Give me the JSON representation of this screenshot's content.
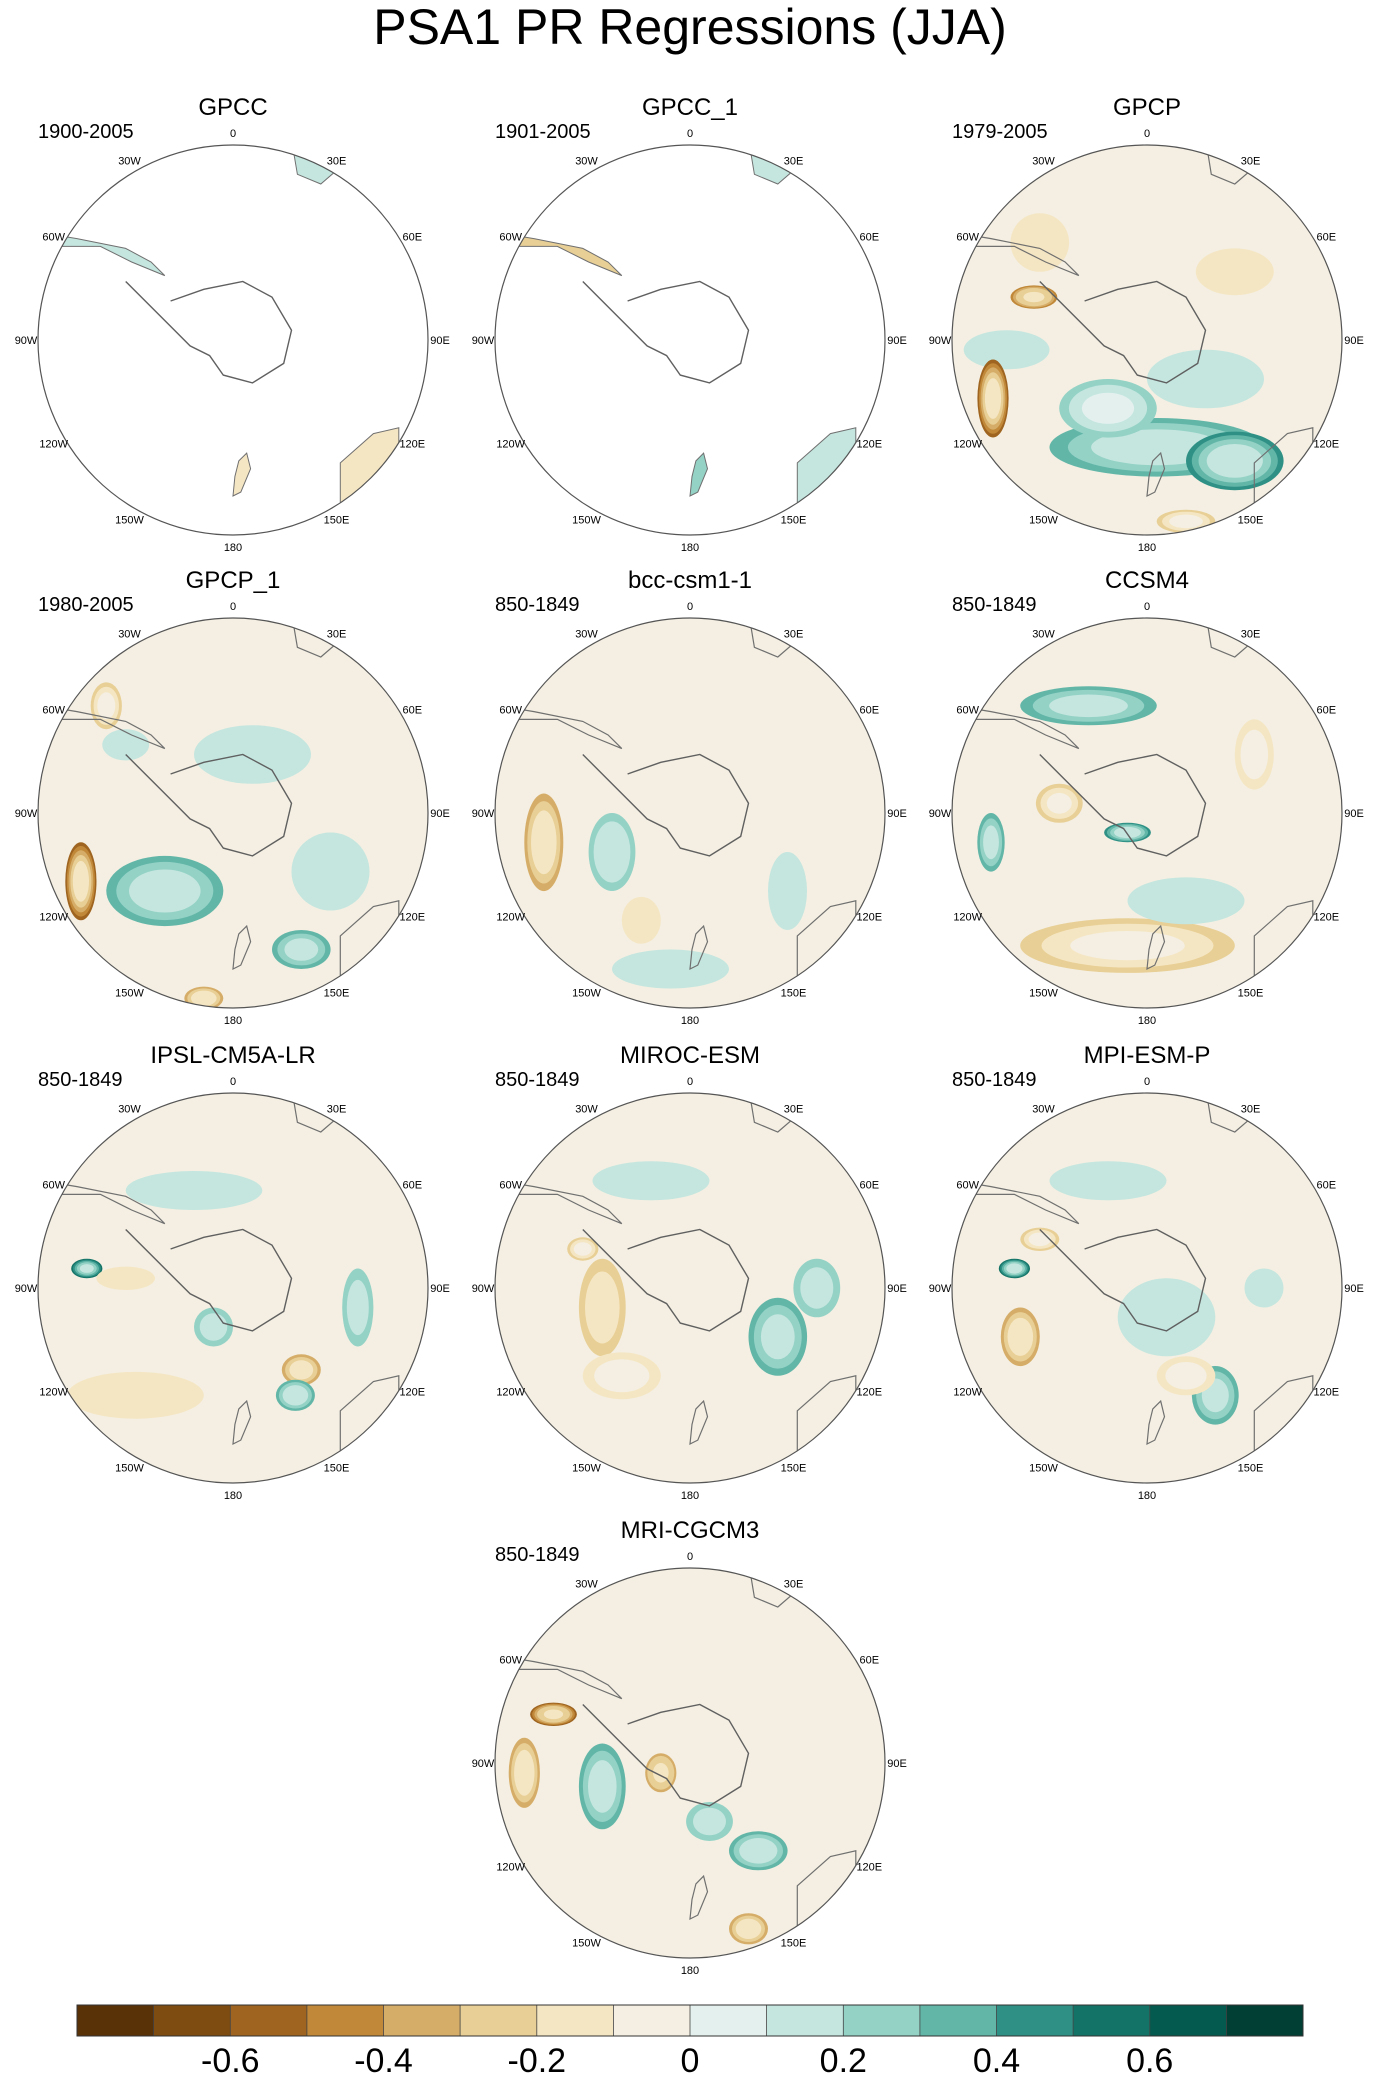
{
  "title": "PSA1 PR Regressions (JJA)",
  "lon_labels": [
    "0",
    "30E",
    "60E",
    "90E",
    "120E",
    "150E",
    "180",
    "150W",
    "120W",
    "90W",
    "60W",
    "30W"
  ],
  "panels": [
    {
      "name": "GPCC",
      "period": "1900-2005",
      "field": "land_only",
      "landRegions": [
        "south-america",
        "africa",
        "australia",
        "new-zealand"
      ]
    },
    {
      "name": "GPCC_1",
      "period": "1901-2005",
      "field": "land_only",
      "landRegions": [
        "south-america",
        "africa",
        "australia",
        "new-zealand"
      ]
    },
    {
      "name": "GPCP",
      "period": "1979-2005",
      "field": "full"
    },
    {
      "name": "GPCP_1",
      "period": "1980-2005",
      "field": "full"
    },
    {
      "name": "bcc-csm1-1",
      "period": "850-1849",
      "field": "full"
    },
    {
      "name": "CCSM4",
      "period": "850-1849",
      "field": "full"
    },
    {
      "name": "IPSL-CM5A-LR",
      "period": "850-1849",
      "field": "full"
    },
    {
      "name": "MIROC-ESM",
      "period": "850-1849",
      "field": "full"
    },
    {
      "name": "MPI-ESM-P",
      "period": "850-1849",
      "field": "full"
    },
    {
      "name": "MRI-CGCM3",
      "period": "850-1849",
      "field": "full"
    }
  ],
  "chart_data": {
    "type": "heatmap",
    "projection": "south polar stereographic",
    "colorbar": {
      "orientation": "horizontal",
      "levels": [
        -0.6,
        -0.4,
        -0.2,
        0,
        0.2,
        0.4,
        0.6
      ],
      "tick_labels": [
        "-0.6",
        "-0.4",
        "-0.2",
        "0",
        "0.2",
        "0.4",
        "0.6"
      ],
      "colors": [
        "#5a3208",
        "#7e4b10",
        "#9e6420",
        "#c08838",
        "#d6ad68",
        "#e8cf95",
        "#f5e6c3",
        "#f4efe2",
        "#e3f0ee",
        "#c4e6df",
        "#94d2c6",
        "#62b6a8",
        "#2f9186",
        "#137366",
        "#045a4e",
        "#013f34"
      ]
    }
  }
}
